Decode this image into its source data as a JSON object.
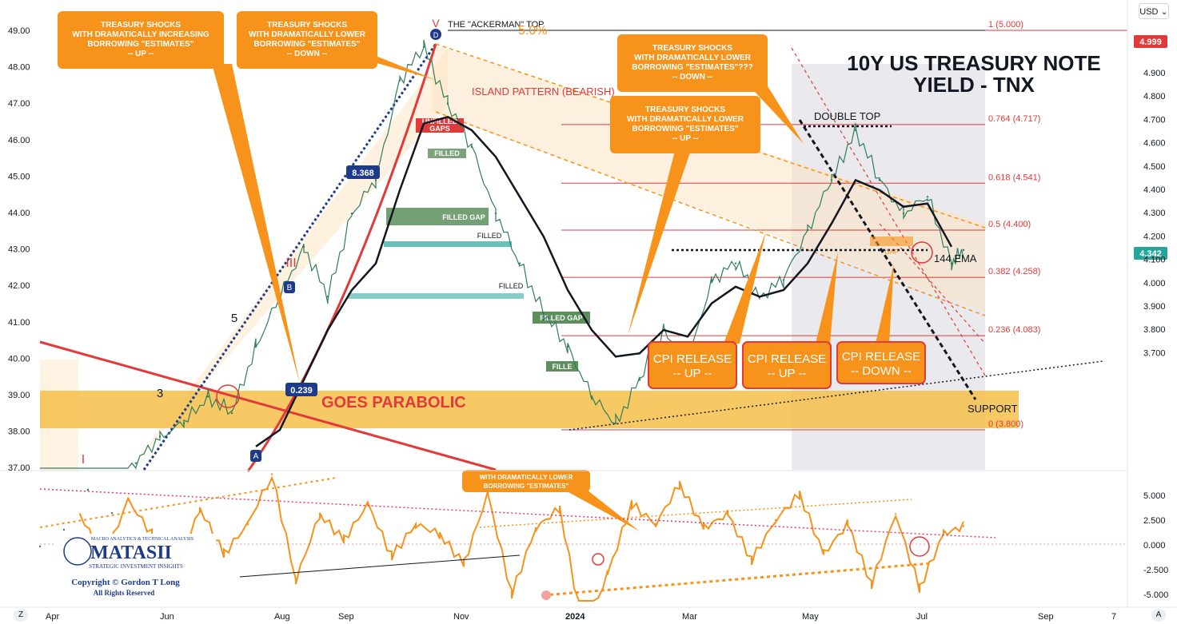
{
  "price_axis": {
    "currency_button": "USD ⌄",
    "current_price_tag": "4.342",
    "target_tag": "4.999"
  },
  "controls": {
    "zoom_label": "Z",
    "auto_label": "A"
  },
  "title": {
    "line1": "10Y US TREASURY NOTE",
    "line2": "YIELD - TNX"
  },
  "callouts": [
    {
      "id": "c1",
      "lines": [
        "TREASURY SHOCKS",
        "WITH DRAMATICALLY INCREASING",
        "BORROWING \"ESTIMATES\"",
        "-- UP --"
      ]
    },
    {
      "id": "c2",
      "lines": [
        "TREASURY SHOCKS",
        "WITH DRAMATICALLY LOWER",
        "BORROWING \"ESTIMATES\"",
        "-- DOWN --"
      ]
    },
    {
      "id": "c3",
      "lines": [
        "TREASURY SHOCKS",
        "WITH DRAMATICALLY LOWER",
        "BORROWING \"ESTIMATES\"???",
        "-- DOWN --"
      ]
    },
    {
      "id": "c4",
      "lines": [
        "TREASURY SHOCKS",
        "WITH DRAMATICALLY LOWER",
        "BORROWING \"ESTIMATES\"",
        "-- UP --"
      ]
    },
    {
      "id": "c5",
      "lines": [
        "WITH DRAMATICALLY LOWER",
        "BORROWING \"ESTIMATES\""
      ]
    }
  ],
  "cpi_boxes": [
    {
      "line1": "CPI RELEASE",
      "line2": "-- UP --"
    },
    {
      "line1": "CPI RELEASE",
      "line2": "-- UP --"
    },
    {
      "line1": "CPI RELEASE",
      "line2": "-- DOWN --"
    }
  ],
  "annotations": {
    "ackerman_top": "THE \"ACKERMAN\" TOP",
    "five_pct": "5.0%",
    "island": "ISLAND PATTERN (BEARISH)",
    "double_top": "DOUBLE TOP",
    "goes_parabolic": "GOES PARABOLIC",
    "support": "SUPPORT",
    "ema": "144 EMA",
    "wave_5": "5",
    "wave_3": "3",
    "wave_III": "III",
    "wave_I": "I",
    "wave_V": "V",
    "unfilled_gaps": [
      "UNFILLED",
      "GAPS"
    ],
    "filled_1": "FILLED",
    "filled_gap_1": "FILLED GAP",
    "filled_2": "FILLED",
    "filled_3": "FILLED",
    "filled_gap_2": "FILLED GAP",
    "fille": "FILLE",
    "gap_box": "GAP",
    "badge_8368": "8.368",
    "badge_0239": "0.239",
    "point_B": "B",
    "point_A": "A",
    "point_D": "D"
  },
  "logo": {
    "top": "MACRO ANALYTICS & TECHNICAL ANALYSIS",
    "name": "MATASII",
    "sub": "STRATEGIC INVESTMENT INSIGHTS",
    "copyright": "Copyright © Gordon T Long",
    "rights": "All Rights Reserved"
  },
  "colors": {
    "orange": "#f7931a",
    "gold_band": "#f5c04a",
    "red": "#e03a3a",
    "black": "#131722",
    "blue": "#1e3a8a",
    "teal": "#26a69a"
  },
  "chart_data": [
    {
      "type": "line",
      "name": "main",
      "title": "10Y US TREASURY NOTE YIELD - TNX",
      "x_ticks": [
        "Apr",
        "Jun",
        "Aug",
        "Sep",
        "Nov",
        "2024",
        "Mar",
        "May",
        "Jul",
        "Sep",
        "7"
      ],
      "y_ticks_left": [
        "49.00",
        "48.00",
        "47.00",
        "46.00",
        "45.00",
        "44.00",
        "43.00",
        "42.00",
        "41.00",
        "40.00",
        "39.00",
        "38.00",
        "37.00"
      ],
      "y_ticks_right": [
        "4.900",
        "4.800",
        "4.700",
        "4.600",
        "4.500",
        "4.400",
        "4.300",
        "4.200",
        "4.100",
        "4.000",
        "3.900",
        "3.800",
        "3.700"
      ],
      "ylim": [
        3.67,
        5.05
      ],
      "fib_levels": [
        {
          "ratio": "1",
          "value": 5.0,
          "label": "1 (5.000)"
        },
        {
          "ratio": "0.764",
          "value": 4.717,
          "label": "0.764 (4.717)"
        },
        {
          "ratio": "0.618",
          "value": 4.541,
          "label": "0.618 (4.541)"
        },
        {
          "ratio": "0.5",
          "value": 4.4,
          "label": "0.5 (4.400)"
        },
        {
          "ratio": "0.382",
          "value": 4.258,
          "label": "0.382 (4.258)"
        },
        {
          "ratio": "0.236",
          "value": 4.083,
          "label": "0.236 (4.083)"
        },
        {
          "ratio": "0",
          "value": 3.8,
          "label": "0 (3.800)"
        }
      ],
      "current_value": 4.342,
      "series": [
        {
          "name": "TNX",
          "x": [
            0,
            30,
            60,
            90,
            120,
            150,
            180,
            210,
            240,
            270,
            300,
            330,
            360,
            390,
            420,
            450,
            480,
            510,
            540,
            570,
            600,
            630,
            660,
            690,
            720,
            750,
            780,
            810,
            840,
            870,
            900,
            930,
            960,
            990,
            1020,
            1050,
            1080,
            1110,
            1140,
            1155
          ],
          "values": [
            3.45,
            3.5,
            3.62,
            3.55,
            3.7,
            3.78,
            3.82,
            3.9,
            3.85,
            4.05,
            4.2,
            4.35,
            4.2,
            4.45,
            4.55,
            4.85,
            4.95,
            4.78,
            4.65,
            4.45,
            4.3,
            4.15,
            4.05,
            3.9,
            3.82,
            3.95,
            4.1,
            4.0,
            4.25,
            4.3,
            4.2,
            4.25,
            4.4,
            4.55,
            4.7,
            4.55,
            4.45,
            4.5,
            4.3,
            4.34
          ]
        },
        {
          "name": "144 EMA",
          "x": [
            270,
            300,
            330,
            360,
            390,
            420,
            450,
            480,
            510,
            540,
            570,
            600,
            630,
            660,
            690,
            720,
            750,
            780,
            810,
            840,
            870,
            900,
            930,
            960,
            990,
            1020,
            1050,
            1080,
            1110,
            1140
          ],
          "values": [
            3.75,
            3.8,
            3.95,
            4.1,
            4.22,
            4.3,
            4.52,
            4.72,
            4.74,
            4.7,
            4.62,
            4.5,
            4.38,
            4.22,
            4.1,
            4.02,
            4.03,
            4.1,
            4.08,
            4.18,
            4.23,
            4.2,
            4.22,
            4.3,
            4.42,
            4.55,
            4.52,
            4.47,
            4.48,
            4.35
          ]
        }
      ]
    },
    {
      "type": "line",
      "name": "oscillator",
      "y_ticks": [
        "5.000",
        "2.500",
        "0.000",
        "-2.500",
        "-5.000"
      ],
      "ylim": [
        -5.5,
        6.5
      ],
      "series": [
        {
          "name": "oscillator",
          "x": [
            50,
            80,
            110,
            140,
            170,
            200,
            230,
            260,
            290,
            320,
            350,
            380,
            410,
            440,
            470,
            500,
            530,
            560,
            590,
            620,
            650,
            680,
            710,
            740,
            770,
            800,
            830,
            860,
            890,
            920,
            950,
            980,
            1010,
            1040,
            1070,
            1100,
            1130,
            1155
          ],
          "values": [
            1.5,
            -0.8,
            2.2,
            0.5,
            -1.5,
            1.8,
            -0.5,
            1.0,
            3.5,
            -1.8,
            1.5,
            0.2,
            2.0,
            -0.6,
            1.0,
            0.5,
            -1.0,
            2.5,
            -2.5,
            0.8,
            1.8,
            -4.5,
            -1.5,
            2.0,
            1.0,
            3.0,
            0.8,
            1.5,
            -0.8,
            1.2,
            2.5,
            -0.5,
            1.0,
            -2.0,
            1.5,
            -2.2,
            0.5,
            0.9
          ]
        }
      ]
    }
  ]
}
